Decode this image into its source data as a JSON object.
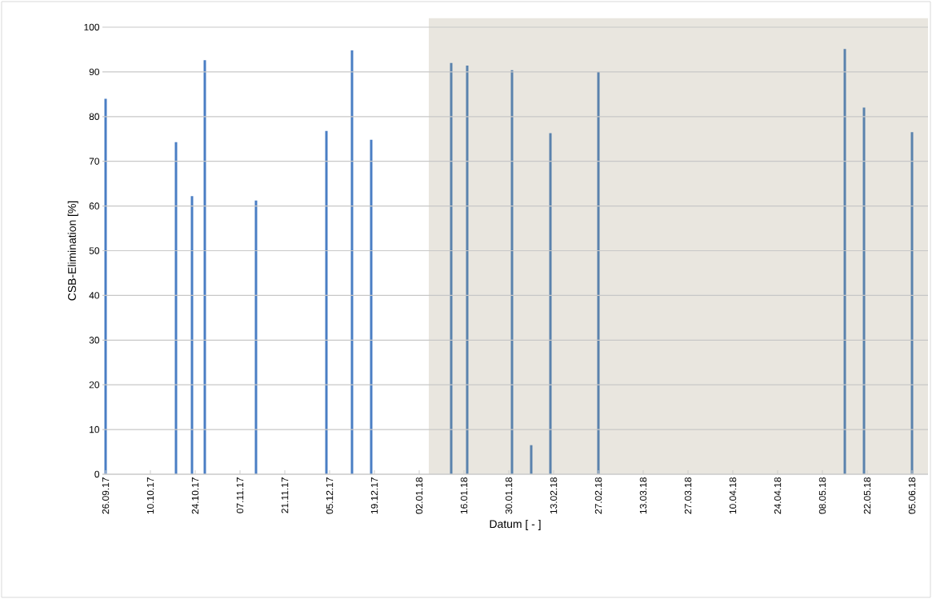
{
  "chart_data": {
    "type": "bar",
    "xlabel": "Datum [ - ]",
    "ylabel": "CSB-Elimination [%]",
    "x": [
      "2017-09-26",
      "2017-10-18",
      "2017-10-23",
      "2017-10-27",
      "2017-11-12",
      "2017-12-04",
      "2017-12-12",
      "2017-12-18",
      "2018-01-12",
      "2018-01-17",
      "2018-01-31",
      "2018-02-06",
      "2018-02-12",
      "2018-02-27",
      "2018-05-15",
      "2018-05-21",
      "2018-06-05"
    ],
    "values": [
      84,
      74.3,
      62.2,
      92.6,
      61.2,
      76.8,
      94.8,
      74.8,
      92,
      91.4,
      90.4,
      6.5,
      76.3,
      90,
      95.1,
      82,
      76.5
    ],
    "colors": [
      "#4a7ec4",
      "#4a7ec4",
      "#4a7ec4",
      "#4a7ec4",
      "#4a7ec4",
      "#4a7ec4",
      "#4a7ec4",
      "#4a7ec4",
      "#5a82ad",
      "#5a82ad",
      "#5a82ad",
      "#5a82ad",
      "#5a82ad",
      "#5a82ad",
      "#5a82ad",
      "#5a82ad",
      "#5a82ad"
    ],
    "xlim": [
      "2017-09-25",
      "2018-06-10"
    ],
    "xticks": [
      {
        "value": "2017-09-26",
        "label": "26.09.17"
      },
      {
        "value": "2017-10-10",
        "label": "10.10.17"
      },
      {
        "value": "2017-10-24",
        "label": "24.10.17"
      },
      {
        "value": "2017-11-07",
        "label": "07.11.17"
      },
      {
        "value": "2017-11-21",
        "label": "21.11.17"
      },
      {
        "value": "2017-12-05",
        "label": "05.12.17"
      },
      {
        "value": "2017-12-19",
        "label": "19.12.17"
      },
      {
        "value": "2018-01-02",
        "label": "02.01.18"
      },
      {
        "value": "2018-01-16",
        "label": "16.01.18"
      },
      {
        "value": "2018-01-30",
        "label": "30.01.18"
      },
      {
        "value": "2018-02-13",
        "label": "13.02.18"
      },
      {
        "value": "2018-02-27",
        "label": "27.02.18"
      },
      {
        "value": "2018-03-13",
        "label": "13.03.18"
      },
      {
        "value": "2018-03-27",
        "label": "27.03.18"
      },
      {
        "value": "2018-04-10",
        "label": "10.04.18"
      },
      {
        "value": "2018-04-24",
        "label": "24.04.18"
      },
      {
        "value": "2018-05-08",
        "label": "08.05.18"
      },
      {
        "value": "2018-05-22",
        "label": "22.05.18"
      },
      {
        "value": "2018-06-05",
        "label": "05.06.18"
      }
    ],
    "ylim": [
      0,
      100
    ],
    "yticks": [
      0,
      10,
      20,
      30,
      40,
      50,
      60,
      70,
      80,
      90,
      100
    ],
    "grid": "y",
    "bands": [
      {
        "axis": "x",
        "from": "2018-01-05",
        "to": "2018-06-10",
        "color": "#e9e6df"
      }
    ]
  }
}
